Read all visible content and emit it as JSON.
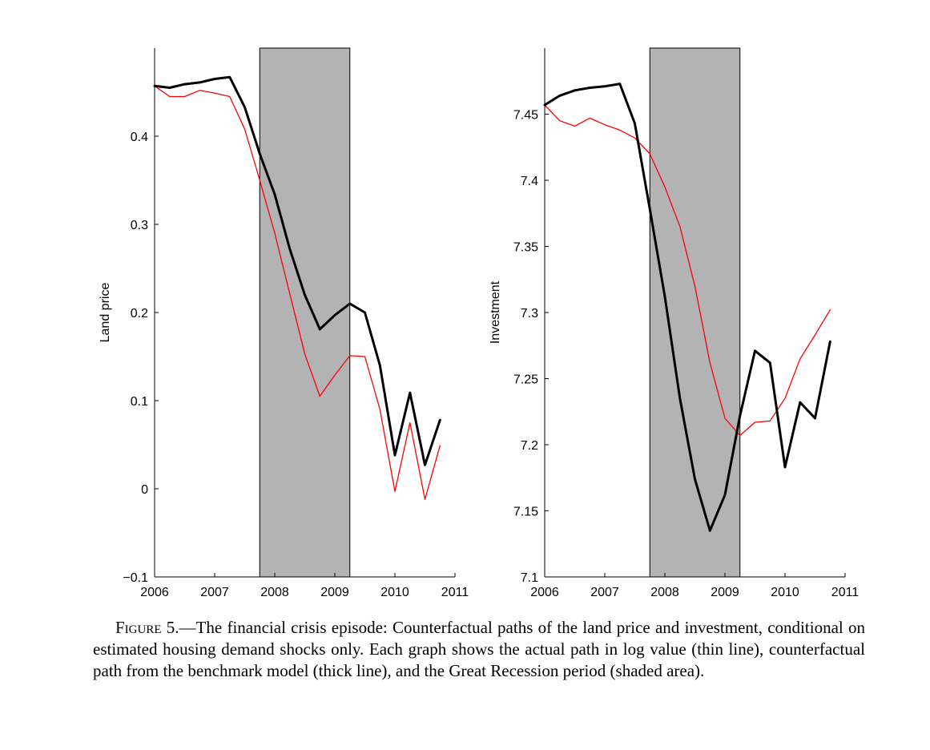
{
  "chart_data": [
    {
      "type": "line",
      "ylabel": "Land price",
      "xlabel": "",
      "xlim": [
        2006,
        2011
      ],
      "ylim": [
        -0.1,
        0.5
      ],
      "xticks": [
        "2006",
        "2007",
        "2008",
        "2009",
        "2010",
        "2011"
      ],
      "yticks": [
        "−0.1",
        "0",
        "0.1",
        "0.2",
        "0.3",
        "0.4"
      ],
      "ytick_values": [
        -0.1,
        0,
        0.1,
        0.2,
        0.3,
        0.4
      ],
      "shaded_period": [
        2007.75,
        2009.25
      ],
      "shade_color": "#b3b3b3",
      "x": [
        2006.0,
        2006.25,
        2006.5,
        2006.75,
        2007.0,
        2007.25,
        2007.5,
        2007.75,
        2008.0,
        2008.25,
        2008.5,
        2008.75,
        2009.0,
        2009.25,
        2009.5,
        2009.75,
        2010.0,
        2010.25,
        2010.5,
        2010.75
      ],
      "series": [
        {
          "style": "thick",
          "color": "#000000",
          "values": [
            0.457,
            0.455,
            0.459,
            0.461,
            0.465,
            0.467,
            0.433,
            0.38,
            0.334,
            0.272,
            0.22,
            0.181,
            0.197,
            0.21,
            0.2,
            0.14,
            0.038,
            0.109,
            0.027,
            0.078
          ]
        },
        {
          "style": "thin",
          "color": "#ff0000",
          "values": [
            0.457,
            0.445,
            0.445,
            0.452,
            0.449,
            0.445,
            0.408,
            0.35,
            0.29,
            0.221,
            0.153,
            0.105,
            0.129,
            0.151,
            0.15,
            0.09,
            -0.003,
            0.075,
            -0.012,
            0.049
          ]
        }
      ]
    },
    {
      "type": "line",
      "ylabel": "Investment",
      "xlabel": "",
      "xlim": [
        2006,
        2011
      ],
      "ylim": [
        7.1,
        7.5
      ],
      "xticks": [
        "2006",
        "2007",
        "2008",
        "2009",
        "2010",
        "2011"
      ],
      "yticks": [
        "7.1",
        "7.15",
        "7.2",
        "7.25",
        "7.3",
        "7.35",
        "7.4",
        "7.45"
      ],
      "ytick_values": [
        7.1,
        7.15,
        7.2,
        7.25,
        7.3,
        7.35,
        7.4,
        7.45
      ],
      "shaded_period": [
        2007.75,
        2009.25
      ],
      "shade_color": "#b3b3b3",
      "x": [
        2006.0,
        2006.25,
        2006.5,
        2006.75,
        2007.0,
        2007.25,
        2007.5,
        2007.75,
        2008.0,
        2008.25,
        2008.5,
        2008.75,
        2009.0,
        2009.25,
        2009.5,
        2009.75,
        2010.0,
        2010.25,
        2010.5,
        2010.75
      ],
      "series": [
        {
          "style": "thick",
          "color": "#000000",
          "values": [
            7.457,
            7.464,
            7.468,
            7.47,
            7.471,
            7.473,
            7.443,
            7.378,
            7.312,
            7.235,
            7.174,
            7.135,
            7.162,
            7.222,
            7.271,
            7.262,
            7.183,
            7.232,
            7.22,
            7.278
          ]
        },
        {
          "style": "thin",
          "color": "#ff0000",
          "values": [
            7.457,
            7.445,
            7.441,
            7.447,
            7.442,
            7.438,
            7.432,
            7.42,
            7.395,
            7.365,
            7.32,
            7.262,
            7.22,
            7.207,
            7.217,
            7.218,
            7.235,
            7.265,
            7.283,
            7.302
          ]
        }
      ]
    }
  ],
  "caption": {
    "label": "Figure 5.",
    "text": "—The financial crisis episode: Counterfactual paths of the land price and investment, conditional on estimated housing demand shocks only. Each graph shows the actual path in log value (thin line), counterfactual path from the benchmark model (thick line), and the Great Recession period (shaded area)."
  }
}
